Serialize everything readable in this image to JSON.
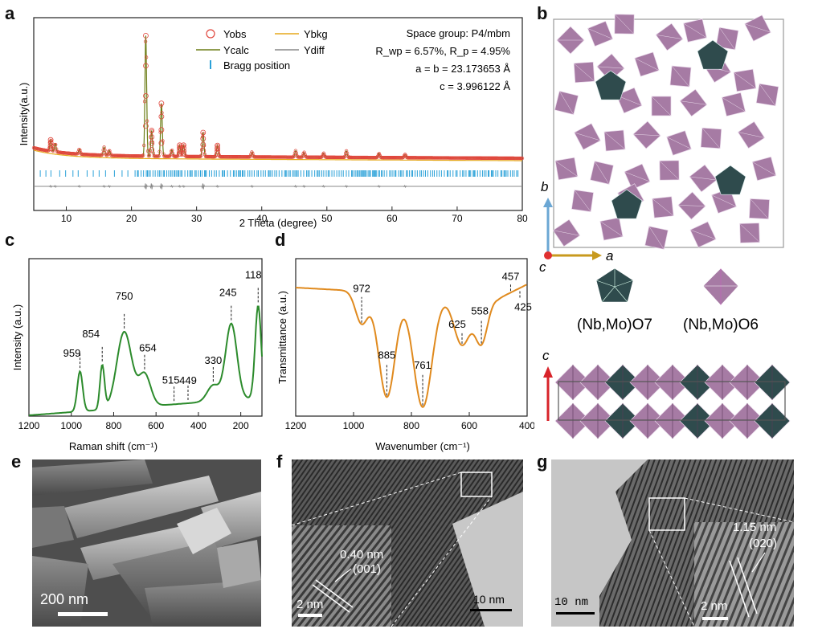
{
  "panels": {
    "a": "a",
    "b": "b",
    "c": "c",
    "d": "d",
    "e": "e",
    "f": "f",
    "g": "g"
  },
  "panel_a": {
    "xlabel": "2 Theta (degree)",
    "ylabel": "Intensity(a.u.)",
    "xticks": [
      "10",
      "20",
      "30",
      "40",
      "50",
      "60",
      "70",
      "80"
    ],
    "legend": {
      "yobs": "Yobs",
      "ycalc": "Ycalc",
      "ybkg": "Ybkg",
      "ydiff": "Ydiff",
      "bragg": "Bragg position"
    },
    "info": {
      "space_group": "Space group: P4/mbm",
      "rwp": "R_wp = 6.57%, R_p = 4.95%",
      "a": "a = b = 23.173653 Å",
      "c": "c = 3.996122 Å"
    },
    "colors": {
      "yobs": "#e0463c",
      "ycalc": "#6b7d16",
      "ybkg": "#e5a81c",
      "ydiff": "#888888",
      "bragg": "#2aa1d8"
    }
  },
  "panel_b": {
    "axis_b": "b",
    "axis_a": "a",
    "axis_c": "c",
    "axis_c2": "c",
    "legend_7": "(Nb,Mo)O7",
    "legend_6": "(Nb,Mo)O6",
    "colors": {
      "octa": "#a67ba4",
      "penta": "#2f4b4d",
      "frame": "#9a9a9a"
    }
  },
  "panel_c": {
    "xlabel": "Raman shift (cm⁻¹)",
    "ylabel": "Intensity (a.u.)",
    "xticks": [
      "1200",
      "1000",
      "800",
      "600",
      "400",
      "200"
    ],
    "peaks": [
      "959",
      "854",
      "750",
      "654",
      "515",
      "449",
      "330",
      "245",
      "118"
    ],
    "color": "#2c8b2c"
  },
  "panel_d": {
    "xlabel": "Wavenumber (cm⁻¹)",
    "ylabel": "Transmittance (a.u.)",
    "xticks": [
      "1200",
      "1000",
      "800",
      "600",
      "400"
    ],
    "peaks": [
      "972",
      "885",
      "761",
      "625",
      "558",
      "457",
      "425"
    ],
    "color": "#e08a1e"
  },
  "panel_e": {
    "scale": "200 nm"
  },
  "panel_f": {
    "spacing": "0.40 nm",
    "plane": "(001)",
    "scale_inset": "2 nm",
    "scale_main": "10 nm"
  },
  "panel_g": {
    "spacing": "1.15 nm",
    "plane": "(020)",
    "scale_inset": "2 nm",
    "scale_main": "10 nm"
  }
}
